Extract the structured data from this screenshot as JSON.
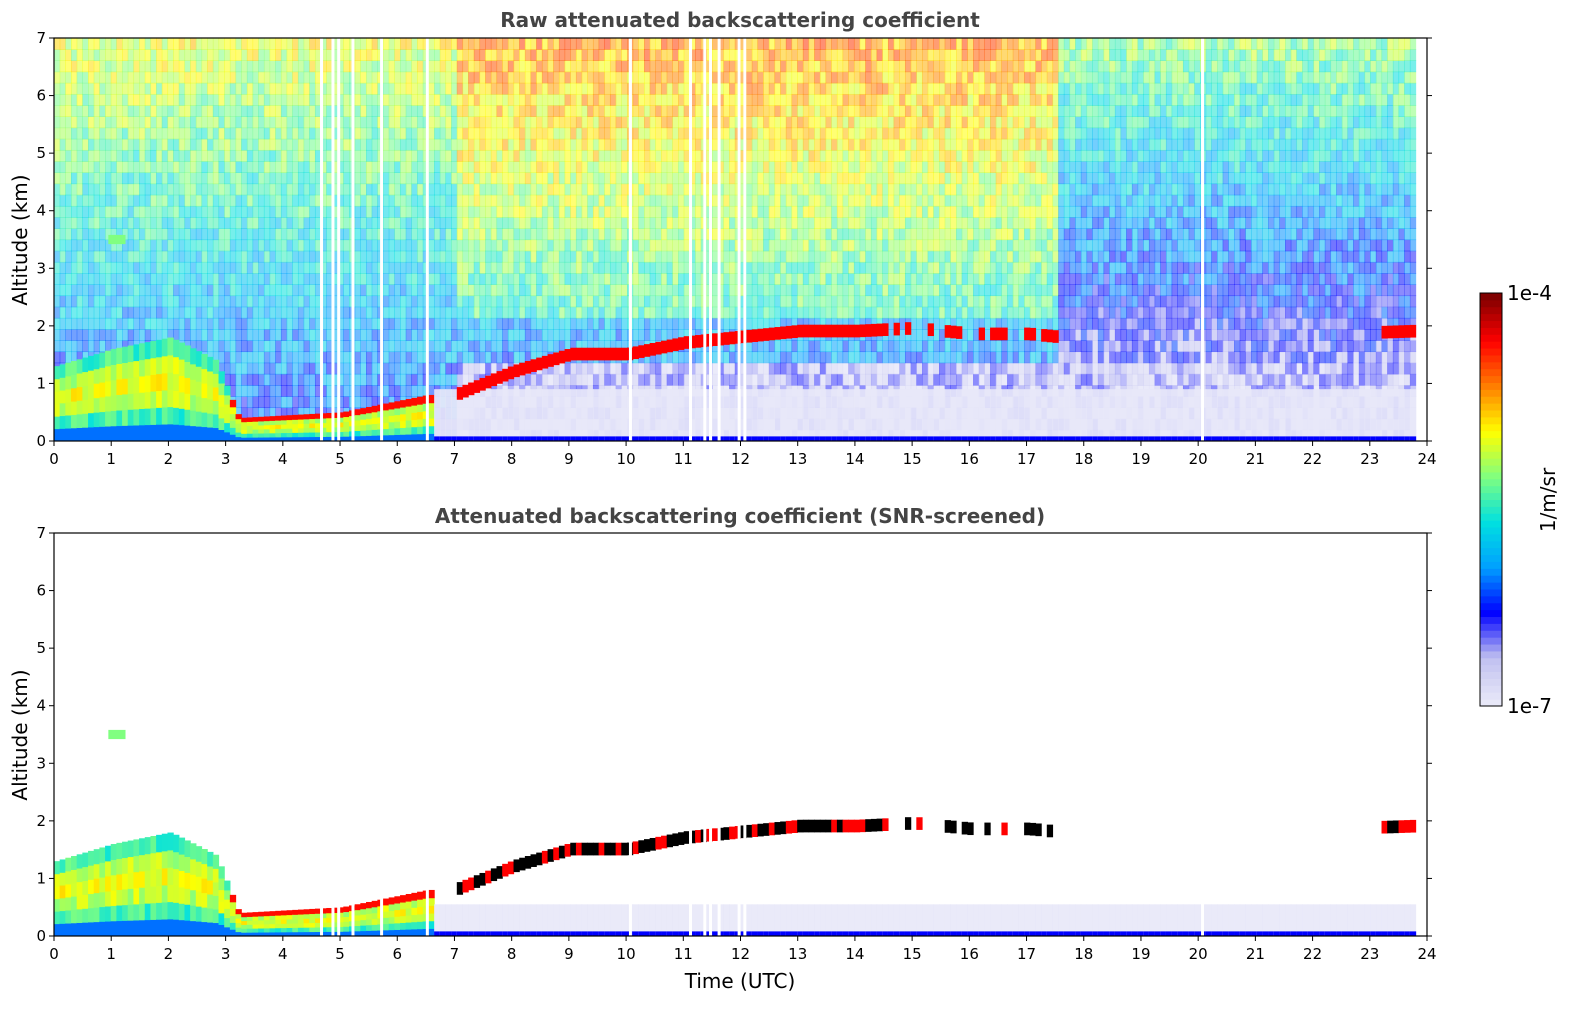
{
  "chart_data": [
    {
      "type": "heatmap",
      "title": "Raw attenuated backscattering coefficient",
      "xlabel": "",
      "ylabel": "Altitude (km)",
      "xlim": [
        0,
        24
      ],
      "ylim": [
        0,
        7
      ],
      "xticks": [
        "0",
        "1",
        "2",
        "3",
        "4",
        "5",
        "6",
        "7",
        "8",
        "9",
        "10",
        "11",
        "12",
        "13",
        "14",
        "15",
        "16",
        "17",
        "18",
        "19",
        "20",
        "21",
        "22",
        "23",
        "24"
      ],
      "yticks": [
        "0",
        "1",
        "2",
        "3",
        "4",
        "5",
        "6",
        "7"
      ],
      "data_end_hour": 23.8,
      "missing_data_hours": [
        4.65,
        4.85,
        4.95,
        5.2,
        5.7,
        6.5,
        10.05,
        11.1,
        11.35,
        11.45,
        11.6,
        11.95,
        12.05,
        20.05
      ],
      "features": {
        "boundary_layer_aerosol": [
          {
            "hour": 0,
            "top_km": 1.3
          },
          {
            "hour": 1,
            "top_km": 1.6
          },
          {
            "hour": 2,
            "top_km": 1.8
          },
          {
            "hour": 2.8,
            "top_km": 1.4
          },
          {
            "hour": 3.2,
            "top_km": 0.4
          },
          {
            "hour": 5,
            "top_km": 0.5
          },
          {
            "hour": 6.5,
            "top_km": 0.8
          }
        ],
        "cloud_layer_top": [
          {
            "hour": 7,
            "alt_km": 0.8
          },
          {
            "hour": 8,
            "alt_km": 1.2
          },
          {
            "hour": 9,
            "alt_km": 1.5
          },
          {
            "hour": 10,
            "alt_km": 1.5
          },
          {
            "hour": 11,
            "alt_km": 1.7
          },
          {
            "hour": 12,
            "alt_km": 1.8
          },
          {
            "hour": 13,
            "alt_km": 1.9
          },
          {
            "hour": 14,
            "alt_km": 1.9
          },
          {
            "hour": 15,
            "alt_km": 1.95
          },
          {
            "hour": 16,
            "alt_km": 1.85
          },
          {
            "hour": 17,
            "alt_km": 1.85
          },
          {
            "hour": 17.5,
            "alt_km": 1.8
          },
          {
            "hour": 23.2,
            "alt_km": 1.88
          },
          {
            "hour": 23.8,
            "alt_km": 1.9
          }
        ],
        "elevated_aerosol": {
          "hour": 1.1,
          "alt_km": 3.5
        }
      }
    },
    {
      "type": "heatmap",
      "title": "Attenuated backscattering coefficient (SNR-screened)",
      "xlabel": "Time (UTC)",
      "ylabel": "Altitude (km)",
      "xlim": [
        0,
        24
      ],
      "ylim": [
        0,
        7
      ],
      "xticks": [
        "0",
        "1",
        "2",
        "3",
        "4",
        "5",
        "6",
        "7",
        "8",
        "9",
        "10",
        "11",
        "12",
        "13",
        "14",
        "15",
        "16",
        "17",
        "18",
        "19",
        "20",
        "21",
        "22",
        "23",
        "24"
      ],
      "yticks": [
        "0",
        "1",
        "2",
        "3",
        "4",
        "5",
        "6",
        "7"
      ],
      "screening": "SNR"
    }
  ],
  "colorbar": {
    "min_label": "1e-7",
    "max_label": "1e-4",
    "label": "1/m/sr",
    "colormap": [
      "#e8e8f8",
      "#c0c0f0",
      "#0000ff",
      "#00a0ff",
      "#00e0e0",
      "#80ff80",
      "#ffff00",
      "#ff8000",
      "#ff0000",
      "#800000"
    ]
  }
}
